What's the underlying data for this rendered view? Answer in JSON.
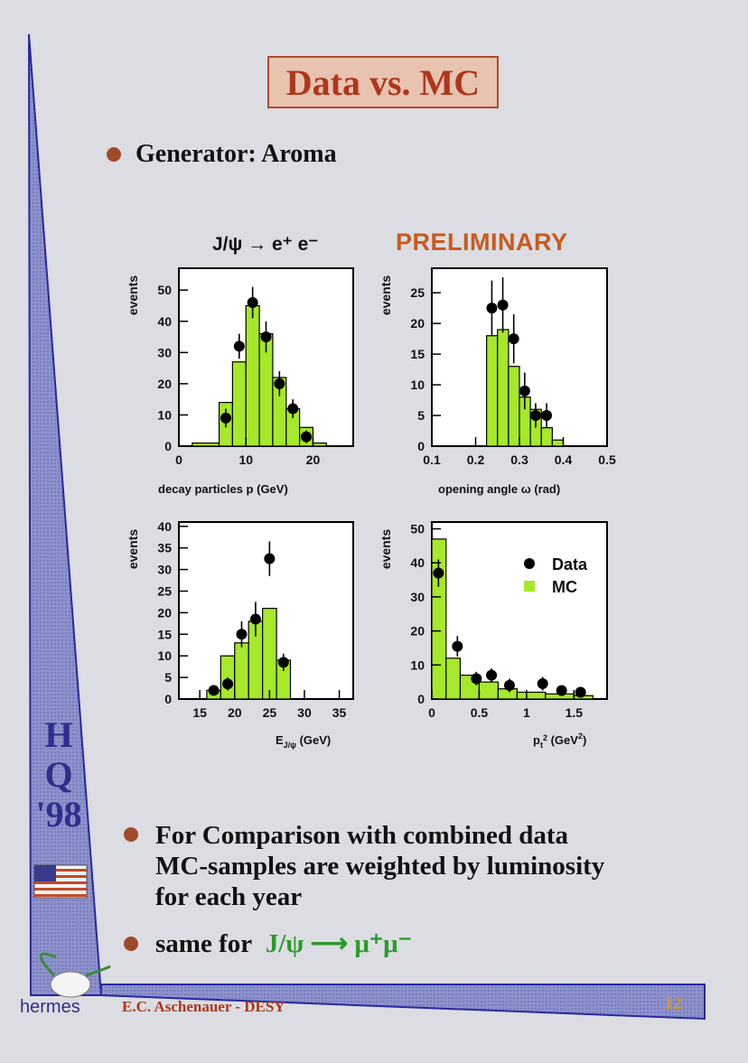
{
  "slide": {
    "title": "Data vs. MC",
    "bullet1": "Generator: Aroma",
    "bullet2_lines": [
      "For Comparison with combined data",
      "MC-samples are weighted by luminosity",
      "for each year"
    ],
    "bullet3_prefix": "same for",
    "bullet3_formula": "J/ψ ⟶ μ⁺μ⁻",
    "footer_author": "E.C. Aschenauer - DESY",
    "page_number": "12",
    "conference": [
      "H",
      "Q",
      "'98"
    ],
    "logo_text": "hermes",
    "colors": {
      "bullet": "#a04a2a",
      "title": "#b0361c",
      "mc_fill": "#a6e82a",
      "formula": "#2a9a2a",
      "sidebar": "#3a3aa0"
    }
  },
  "figure": {
    "decay_label": "J/ψ → e⁺ e⁻",
    "preliminary": "PRELIMINARY",
    "legend": {
      "data": "Data",
      "mc": "MC"
    }
  },
  "chart_data": [
    {
      "type": "bar",
      "ylabel": "events",
      "xlabel": "decay particles p (GeV)",
      "xlim": [
        0,
        26
      ],
      "ylim": [
        0,
        57
      ],
      "xticks": [
        0,
        10,
        20
      ],
      "yticks": [
        0,
        10,
        20,
        30,
        40,
        50
      ],
      "mc_bins": [
        [
          2,
          6,
          1
        ],
        [
          6,
          8,
          14
        ],
        [
          8,
          10,
          27
        ],
        [
          10,
          12,
          45
        ],
        [
          12,
          14,
          36
        ],
        [
          14,
          16,
          22
        ],
        [
          16,
          18,
          12
        ],
        [
          18,
          20,
          6
        ],
        [
          20,
          22,
          1
        ]
      ],
      "data_points": [
        [
          7,
          9,
          3
        ],
        [
          9,
          32,
          4
        ],
        [
          11,
          46,
          5
        ],
        [
          13,
          35,
          5
        ],
        [
          15,
          20,
          4
        ],
        [
          17,
          12,
          3
        ],
        [
          19,
          3,
          2
        ]
      ]
    },
    {
      "type": "bar",
      "ylabel": "events",
      "xlabel": "opening angle ω (rad)",
      "xlim": [
        0.1,
        0.5
      ],
      "ylim": [
        0,
        29
      ],
      "xticks": [
        0.1,
        0.2,
        0.3,
        0.4,
        0.5
      ],
      "yticks": [
        0,
        5,
        10,
        15,
        20,
        25
      ],
      "mc_bins": [
        [
          0.225,
          0.25,
          18
        ],
        [
          0.25,
          0.275,
          19
        ],
        [
          0.275,
          0.3,
          13
        ],
        [
          0.3,
          0.325,
          8
        ],
        [
          0.325,
          0.35,
          6
        ],
        [
          0.35,
          0.375,
          3
        ],
        [
          0.375,
          0.4,
          1
        ]
      ],
      "data_points": [
        [
          0.237,
          22.5,
          4.5
        ],
        [
          0.262,
          23,
          4.5
        ],
        [
          0.287,
          17.5,
          4
        ],
        [
          0.312,
          9,
          3
        ],
        [
          0.337,
          5,
          2
        ],
        [
          0.362,
          5,
          2
        ]
      ]
    },
    {
      "type": "bar",
      "ylabel": "events",
      "xlabel": "E",
      "xlabel_sub": "J/ψ",
      "xlabel_unit": " (GeV)",
      "xlim": [
        12,
        37
      ],
      "ylim": [
        0,
        41
      ],
      "xticks": [
        15,
        20,
        25,
        30,
        35
      ],
      "yticks": [
        0,
        5,
        10,
        15,
        20,
        25,
        30,
        35,
        40
      ],
      "mc_bins": [
        [
          16,
          18,
          2
        ],
        [
          18,
          20,
          10
        ],
        [
          20,
          22,
          13
        ],
        [
          22,
          24,
          18
        ],
        [
          24,
          26,
          21
        ],
        [
          26,
          28,
          9
        ]
      ],
      "data_points": [
        [
          17,
          2,
          1
        ],
        [
          19,
          3.5,
          1.5
        ],
        [
          21,
          15,
          3
        ],
        [
          23,
          18.5,
          4
        ],
        [
          25,
          32.5,
          4
        ],
        [
          27,
          8.5,
          2
        ]
      ]
    },
    {
      "type": "bar",
      "ylabel": "events",
      "xlabel": "p",
      "xlabel_sub": "t",
      "xlabel_sup": "2",
      "xlabel_unit": " (GeV",
      "xlabel_unit_sup": "2",
      "xlabel_close": ")",
      "xlim": [
        0,
        1.85
      ],
      "ylim": [
        0,
        52
      ],
      "xticks": [
        0,
        0.5,
        1,
        1.5
      ],
      "xtick_labels": [
        "0",
        "0.5",
        "1",
        "1.5"
      ],
      "yticks": [
        0,
        10,
        20,
        30,
        40,
        50
      ],
      "mc_bins": [
        [
          0,
          0.15,
          47
        ],
        [
          0.15,
          0.3,
          12
        ],
        [
          0.3,
          0.5,
          7
        ],
        [
          0.5,
          0.7,
          5
        ],
        [
          0.7,
          0.9,
          3
        ],
        [
          0.9,
          1.2,
          2
        ],
        [
          1.2,
          1.5,
          1.5
        ],
        [
          1.5,
          1.7,
          1
        ]
      ],
      "data_points": [
        [
          0.07,
          37,
          4
        ],
        [
          0.27,
          15.5,
          3
        ],
        [
          0.47,
          6,
          2
        ],
        [
          0.63,
          7,
          2
        ],
        [
          0.82,
          4,
          2
        ],
        [
          1.17,
          4.5,
          2
        ],
        [
          1.37,
          2.5,
          1.5
        ],
        [
          1.57,
          2,
          1.5
        ]
      ]
    }
  ]
}
